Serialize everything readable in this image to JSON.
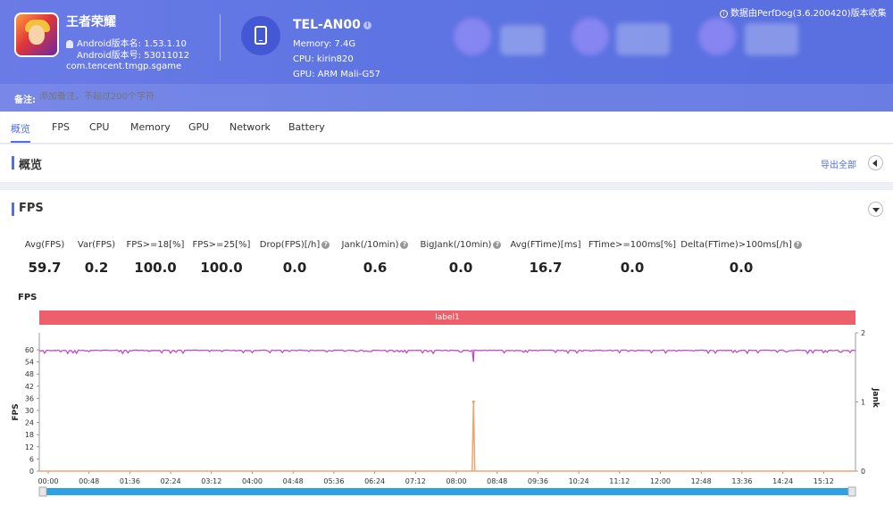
{
  "header": {
    "app_name": "王者荣耀",
    "app_version_name": "Android版本名: 1.53.1.10",
    "app_version_code": "Android版本号: 53011012",
    "package": "com.tencent.tmgp.sgame",
    "device_name": "TEL-AN00",
    "memory": "Memory: 7.4G",
    "cpu": "CPU: kirin820",
    "gpu": "GPU: ARM Mali-G57",
    "collect_note": "数据由PerfDog(3.6.200420)版本收集",
    "remark_label": "备注:",
    "remark_placeholder": "添加备注，不超过200个字符"
  },
  "tabs": [
    {
      "label": "概览",
      "active": true
    },
    {
      "label": "FPS"
    },
    {
      "label": "CPU"
    },
    {
      "label": "Memory"
    },
    {
      "label": "GPU"
    },
    {
      "label": "Network"
    },
    {
      "label": "Battery"
    }
  ],
  "overview": {
    "title": "概览",
    "export_label": "导出全部"
  },
  "fps_section": {
    "title": "FPS",
    "metrics": [
      {
        "label": "Avg(FPS)",
        "value": "59.7",
        "help": false
      },
      {
        "label": "Var(FPS)",
        "value": "0.2",
        "help": false
      },
      {
        "label": "FPS>=18[%]",
        "value": "100.0",
        "help": false
      },
      {
        "label": "FPS>=25[%]",
        "value": "100.0",
        "help": false
      },
      {
        "label": "Drop(FPS)[/h]",
        "value": "0.0",
        "help": true
      },
      {
        "label": "Jank(/10min)",
        "value": "0.6",
        "help": true
      },
      {
        "label": "BigJank(/10min)",
        "value": "0.0",
        "help": true
      },
      {
        "label": "Avg(FTime)[ms]",
        "value": "16.7",
        "help": false
      },
      {
        "label": "FTime>=100ms[%]",
        "value": "0.0",
        "help": false
      },
      {
        "label": "Delta(FTime)>100ms[/h]",
        "value": "0.0",
        "help": true
      }
    ]
  },
  "chart_data": {
    "type": "line",
    "title": "FPS",
    "band_label": "label1",
    "ylabel": "FPS",
    "ylabel_right": "Jank",
    "ylim": [
      0,
      66
    ],
    "y_ticks": [
      0,
      6,
      12,
      18,
      24,
      30,
      36,
      42,
      48,
      54,
      60
    ],
    "y2lim": [
      0,
      2
    ],
    "y2_ticks": [
      0,
      1,
      2
    ],
    "x_ticks": [
      "00:00",
      "00:48",
      "01:36",
      "02:24",
      "03:12",
      "04:00",
      "04:48",
      "05:36",
      "06:24",
      "07:12",
      "08:00",
      "08:48",
      "09:36",
      "10:24",
      "11:12",
      "12:00",
      "12:48",
      "13:36",
      "14:24",
      "15:12"
    ],
    "series": [
      {
        "name": "FPS",
        "color": "#c049c9",
        "baseline": 59.7,
        "dip_time_fraction": 0.532,
        "dip_value": 54
      },
      {
        "name": "Jank",
        "color": "#f2a36a",
        "baseline": 0,
        "spike_time_fraction": 0.532,
        "spike_value": 1
      }
    ],
    "grid": false
  }
}
